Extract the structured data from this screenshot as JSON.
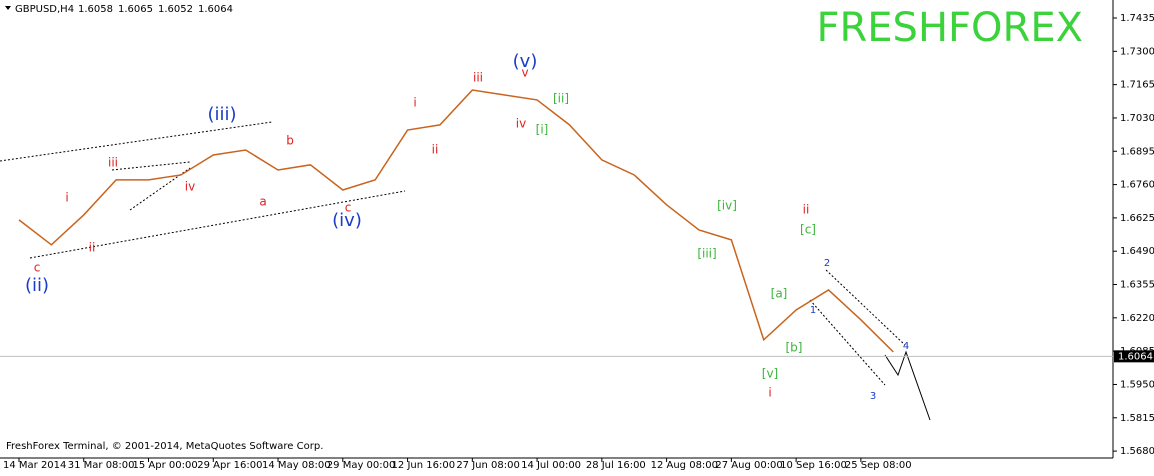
{
  "chart_data": {
    "type": "line",
    "symbol": "GBPUSD,H4",
    "ohlc": [
      1.6058,
      1.6065,
      1.6052,
      1.6064
    ],
    "watermark": "FRESHFOREX",
    "footer": "FreshForex Terminal, © 2001-2014, MetaQuotes Software Corp.",
    "current_price": 1.6064,
    "color": "#c8641e",
    "categories": [
      "14 Mar 2014",
      null,
      "31 Mar 08:00",
      null,
      "15 Apr 00:00",
      null,
      "29 Apr 16:00",
      null,
      "14 May 08:00",
      null,
      "29 May 00:00",
      null,
      "12 Jun 16:00",
      null,
      "27 Jun 08:00",
      null,
      "14 Jul 00:00",
      null,
      "28 Jul 16:00",
      null,
      "12 Aug 08:00",
      null,
      "27 Aug 00:00",
      null,
      "10 Sep 16:00",
      null,
      "25 Sep 08:00",
      null
    ],
    "values": [
      1.6617,
      1.6516,
      1.6637,
      1.6779,
      1.6779,
      1.6799,
      1.688,
      1.69,
      1.6819,
      1.684,
      1.6738,
      1.6779,
      1.6981,
      1.7002,
      1.7143,
      1.7123,
      1.7103,
      1.7002,
      1.686,
      1.6799,
      1.6678,
      1.6576,
      1.6536,
      1.6131,
      1.6252,
      1.6333,
      1.6212,
      1.6082
    ],
    "ylim": [
      1.5652,
      1.7508
    ],
    "yticks": [
      1.7435,
      {
        "value": 1.73,
        "label": "1.7300"
      },
      1.7165,
      {
        "value": 1.703,
        "label": "1.7030"
      },
      1.6895,
      {
        "value": 1.676,
        "label": "1.6760"
      },
      1.6625,
      {
        "value": 1.649,
        "label": "1.6490"
      },
      1.6355,
      {
        "value": 1.622,
        "label": "1.6220"
      },
      1.6085,
      {
        "value": 1.595,
        "label": "1.5950"
      },
      1.5815,
      {
        "value": 1.568,
        "label": "1.5680"
      }
    ],
    "annotations": [
      {
        "text": "c",
        "color": "#e02020"
      },
      {
        "text": "i",
        "color": "#e02020"
      },
      {
        "text": "ii",
        "color": "#e02020"
      },
      {
        "text": "iii",
        "color": "#e02020"
      },
      {
        "text": "iv",
        "color": "#e02020"
      },
      {
        "text": "a",
        "color": "#e02020"
      },
      {
        "text": "b",
        "color": "#e02020"
      },
      {
        "text": "c",
        "color": "#e02020"
      },
      {
        "text": "i",
        "color": "#e02020"
      },
      {
        "text": "ii",
        "color": "#e02020"
      },
      {
        "text": "iii",
        "color": "#e02020"
      },
      {
        "text": "iv",
        "color": "#e02020"
      },
      {
        "text": "v",
        "color": "#e02020"
      },
      {
        "text": "ii",
        "color": "#e02020"
      },
      {
        "text": "i",
        "color": "#e02020"
      },
      {
        "text": "(ii)",
        "color": "#1a3cc8"
      },
      {
        "text": "(iii)",
        "color": "#1a3cc8"
      },
      {
        "text": "(iv)",
        "color": "#1a3cc8"
      },
      {
        "text": "(v)",
        "color": "#1a3cc8"
      },
      {
        "text": "2",
        "color": "#1a3cc8"
      },
      {
        "text": "1",
        "color": "#1a3cc8"
      },
      {
        "text": "3",
        "color": "#1a3cc8"
      },
      {
        "text": "4",
        "color": "#1a3cc8"
      },
      {
        "text": "[i]",
        "color": "#3cb43c"
      },
      {
        "text": "[ii]",
        "color": "#3cb43c"
      },
      {
        "text": "[iii]",
        "color": "#3cb43c"
      },
      {
        "text": "[iv]",
        "color": "#3cb43c"
      },
      {
        "text": "[v]",
        "color": "#3cb43c"
      },
      {
        "text": "[a]",
        "color": "#3cb43c"
      },
      {
        "text": "[b]",
        "color": "#3cb43c"
      },
      {
        "text": "[c]",
        "color": "#3cb43c"
      }
    ]
  }
}
